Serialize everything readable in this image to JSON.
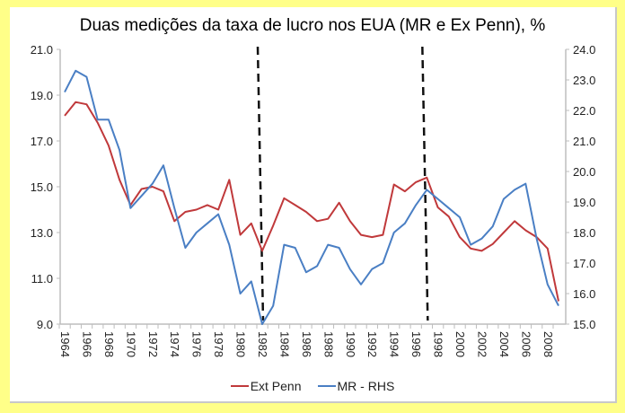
{
  "chart_data": {
    "type": "line",
    "title": "Duas medições da taxa de lucro nos EUA (MR e Ex Penn), %",
    "x": [
      1964,
      1965,
      1966,
      1967,
      1968,
      1969,
      1970,
      1971,
      1972,
      1973,
      1974,
      1975,
      1976,
      1977,
      1978,
      1979,
      1980,
      1981,
      1982,
      1983,
      1984,
      1985,
      1986,
      1987,
      1988,
      1989,
      1990,
      1991,
      1992,
      1993,
      1994,
      1995,
      1996,
      1997,
      1998,
      1999,
      2000,
      2001,
      2002,
      2003,
      2004,
      2005,
      2006,
      2007,
      2008,
      2009
    ],
    "x_tick_labels": [
      "1964",
      "1966",
      "1968",
      "1970",
      "1972",
      "1974",
      "1976",
      "1978",
      "1980",
      "1982",
      "1984",
      "1986",
      "1988",
      "1990",
      "1992",
      "1994",
      "1996",
      "1998",
      "2000",
      "2002",
      "2004",
      "2006",
      "2008"
    ],
    "y_left": {
      "ylim": [
        9,
        21
      ],
      "ticks": [
        "9.0",
        "11.0",
        "13.0",
        "15.0",
        "17.0",
        "19.0",
        "21.0"
      ]
    },
    "y_right": {
      "ylim": [
        15,
        24
      ],
      "ticks": [
        "15.0",
        "16.0",
        "17.0",
        "18.0",
        "19.0",
        "20.0",
        "21.0",
        "22.0",
        "23.0",
        "24.0"
      ]
    },
    "series": [
      {
        "name": "Ext Penn",
        "axis": "left",
        "color": "#c0393b",
        "values": [
          18.1,
          18.7,
          18.6,
          17.8,
          16.8,
          15.3,
          14.2,
          14.9,
          15.0,
          14.8,
          13.5,
          13.9,
          14.0,
          14.2,
          14.0,
          15.3,
          12.9,
          13.4,
          12.2,
          13.3,
          14.5,
          14.2,
          13.9,
          13.5,
          13.6,
          14.3,
          13.5,
          12.9,
          12.8,
          12.9,
          15.1,
          14.8,
          15.2,
          15.4,
          14.1,
          13.7,
          12.8,
          12.3,
          12.2,
          12.5,
          13.0,
          13.5,
          13.1,
          12.8,
          12.3,
          10.0
        ]
      },
      {
        "name": "MR - RHS",
        "axis": "right",
        "color": "#4a7fc4",
        "values": [
          22.6,
          23.3,
          23.1,
          21.7,
          21.7,
          20.7,
          18.8,
          19.2,
          19.6,
          20.2,
          18.8,
          17.5,
          18.0,
          18.3,
          18.6,
          17.6,
          16.0,
          16.4,
          15.0,
          15.6,
          17.6,
          17.5,
          16.7,
          16.9,
          17.6,
          17.5,
          16.8,
          16.3,
          16.8,
          17.0,
          18.0,
          18.3,
          18.9,
          19.4,
          19.1,
          18.8,
          18.5,
          17.6,
          17.8,
          18.2,
          19.1,
          19.4,
          19.6,
          17.8,
          16.3,
          15.6
        ]
      }
    ],
    "vertical_markers": [
      1982,
      1997
    ],
    "legend_position": "bottom",
    "grid": false
  }
}
